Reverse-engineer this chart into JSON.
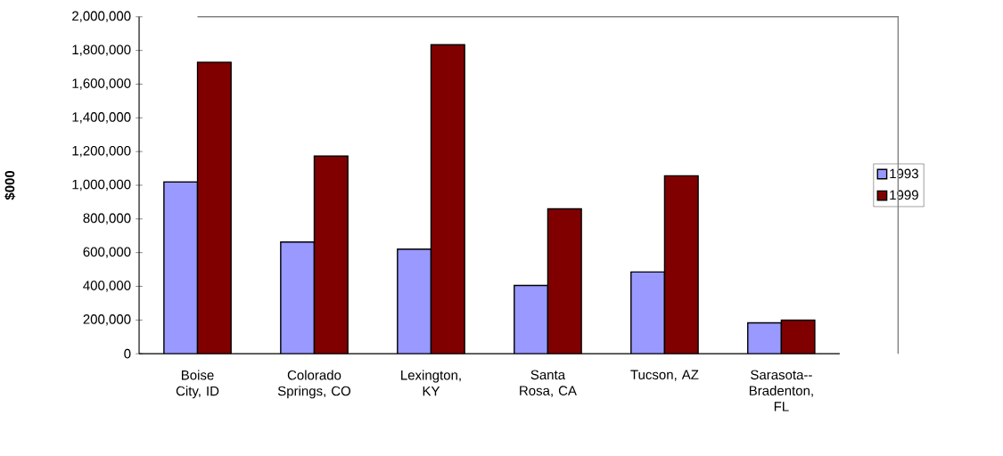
{
  "chart_data": {
    "type": "bar",
    "ylabel": "**$000**",
    "categories": [
      "Boise City, ID",
      "Colorado Springs, CO",
      "Lexington, KY",
      "Santa Rosa, CA",
      "Tucson, AZ",
      "Sarasota--Bradenton, FL"
    ],
    "series": [
      {
        "name": "1993",
        "color": "#9999ff",
        "values": [
          1020000,
          663000,
          621000,
          405000,
          485000,
          183000
        ]
      },
      {
        "name": "1999",
        "color": "#800000",
        "values": [
          1730000,
          1173000,
          1834000,
          860000,
          1056000,
          199000
        ]
      }
    ],
    "ylim": [
      0,
      2000000
    ],
    "yticks": [
      {
        "value": 0,
        "label": "0"
      },
      {
        "value": 200000,
        "label": "200,000"
      },
      {
        "value": 400000,
        "label": "400,000"
      },
      {
        "value": 600000,
        "label": "600,000"
      },
      {
        "value": 800000,
        "label": "800,000"
      },
      {
        "value": 1000000,
        "label": "1,000,000"
      },
      {
        "value": 1200000,
        "label": "1,200,000"
      },
      {
        "value": 1400000,
        "label": "1,400,000"
      },
      {
        "value": 1600000,
        "label": "1,600,000"
      },
      {
        "value": 1800000,
        "label": "1,800,000"
      },
      {
        "value": 2000000,
        "label": "2,000,000"
      }
    ],
    "grid": false,
    "legend": "right"
  }
}
